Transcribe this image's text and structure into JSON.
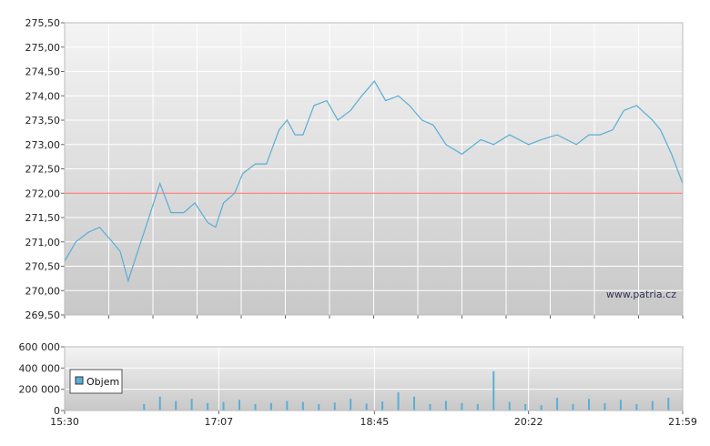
{
  "watermark": "www.patria.cz",
  "chart_data": [
    {
      "type": "line",
      "title": "",
      "xlabel": "",
      "ylabel": "",
      "ylim": [
        269.5,
        275.5
      ],
      "y_ticks": [
        "275,50",
        "275,00",
        "274,50",
        "274,00",
        "273,50",
        "273,00",
        "272,50",
        "272,00",
        "271,50",
        "271,00",
        "270,50",
        "270,00",
        "269,50"
      ],
      "y_values": [
        275.5,
        275.0,
        274.5,
        274.0,
        273.5,
        273.0,
        272.5,
        272.0,
        271.5,
        271.0,
        270.5,
        270.0,
        269.5
      ],
      "x_ticks": [
        "15:30",
        "17:07",
        "18:45",
        "20:22",
        "21:59"
      ],
      "grid": true,
      "reference_line": {
        "value": 272.0,
        "color": "#ff6666"
      },
      "line_color": "#5aaed6",
      "series": [
        {
          "x": [
            "15:30",
            "15:37",
            "15:45",
            "15:52",
            "16:00",
            "16:05",
            "16:10",
            "16:17",
            "16:22",
            "16:30",
            "16:37",
            "16:45",
            "16:52",
            "17:00",
            "17:05",
            "17:10",
            "17:17",
            "17:22",
            "17:30",
            "17:37",
            "17:45",
            "17:50",
            "17:55",
            "18:00",
            "18:07",
            "18:15",
            "18:22",
            "18:30",
            "18:37",
            "18:45",
            "18:52",
            "19:00",
            "19:07",
            "19:15",
            "19:22",
            "19:30",
            "19:40",
            "19:52",
            "20:00",
            "20:10",
            "20:22",
            "20:30",
            "20:40",
            "20:52",
            "21:00",
            "21:07",
            "21:15",
            "21:22",
            "21:30",
            "21:40",
            "21:45",
            "21:52",
            "21:59"
          ],
          "values": [
            270.6,
            271.0,
            271.2,
            271.3,
            271.0,
            270.8,
            270.2,
            270.9,
            271.4,
            272.2,
            271.6,
            271.6,
            271.8,
            271.4,
            271.3,
            271.8,
            272.0,
            272.4,
            272.6,
            272.6,
            273.3,
            273.5,
            273.2,
            273.2,
            273.8,
            273.9,
            273.5,
            273.7,
            274.0,
            274.3,
            273.9,
            274.0,
            273.8,
            273.5,
            273.4,
            273.0,
            272.8,
            273.1,
            273.0,
            273.2,
            273.0,
            273.1,
            273.2,
            273.0,
            273.2,
            273.2,
            273.3,
            273.7,
            273.8,
            273.5,
            273.3,
            272.8,
            272.2
          ]
        }
      ]
    },
    {
      "type": "bar",
      "title": "",
      "xlabel": "",
      "ylabel": "",
      "ylim": [
        0,
        600000
      ],
      "y_ticks": [
        "600 000",
        "400 000",
        "200 000",
        "0"
      ],
      "y_values": [
        600000,
        400000,
        200000,
        0
      ],
      "x_ticks": [
        "15:30",
        "17:07",
        "18:45",
        "20:22",
        "21:59"
      ],
      "grid": true,
      "legend": {
        "placement": "left",
        "entries": [
          "Objem"
        ]
      },
      "bar_color": "#5aaed6",
      "series": [
        {
          "name": "Objem",
          "x": [
            "16:20",
            "16:30",
            "16:40",
            "16:50",
            "17:00",
            "17:10",
            "17:20",
            "17:30",
            "17:40",
            "17:50",
            "18:00",
            "18:10",
            "18:20",
            "18:30",
            "18:40",
            "18:50",
            "19:00",
            "19:10",
            "19:20",
            "19:30",
            "19:40",
            "19:50",
            "20:00",
            "20:10",
            "20:20",
            "20:30",
            "20:40",
            "20:50",
            "21:00",
            "21:10",
            "21:20",
            "21:30",
            "21:40",
            "21:50"
          ],
          "values": [
            60000,
            130000,
            90000,
            110000,
            70000,
            80000,
            100000,
            60000,
            70000,
            90000,
            80000,
            60000,
            75000,
            110000,
            65000,
            85000,
            170000,
            130000,
            60000,
            90000,
            70000,
            60000,
            370000,
            80000,
            60000,
            50000,
            120000,
            60000,
            110000,
            70000,
            100000,
            60000,
            90000,
            120000
          ]
        }
      ]
    }
  ]
}
